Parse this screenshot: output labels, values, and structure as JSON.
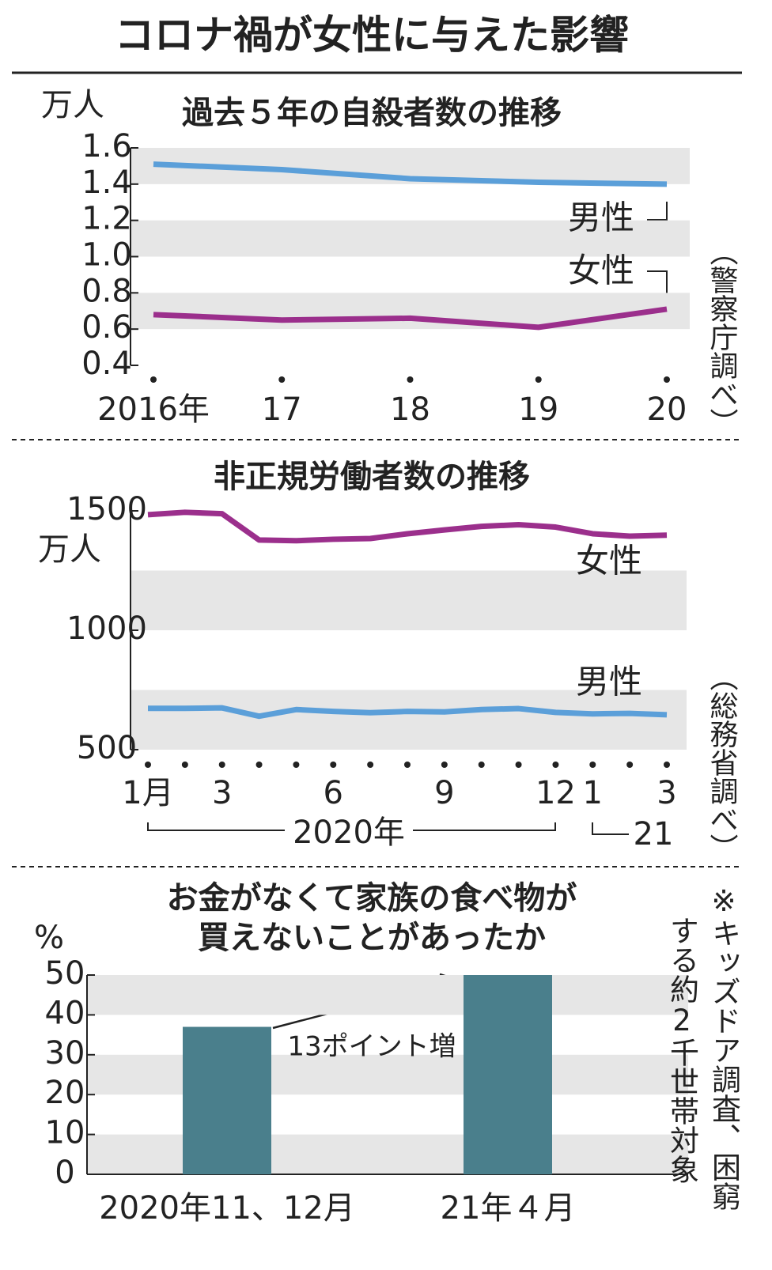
{
  "title": "コロナ禍が女性に与えた影響",
  "chart_data": [
    {
      "type": "line",
      "title": "過去５年の自殺者数の推移",
      "unit": "万人",
      "categories": [
        "2016年",
        "17",
        "18",
        "19",
        "20"
      ],
      "series": [
        {
          "name": "男性",
          "color": "#5b9fd9",
          "values": [
            1.51,
            1.48,
            1.43,
            1.41,
            1.4
          ]
        },
        {
          "name": "女性",
          "color": "#9b2f8c",
          "values": [
            0.68,
            0.65,
            0.66,
            0.61,
            0.71
          ]
        }
      ],
      "ylim": [
        0.4,
        1.6
      ],
      "yticks": [
        1.6,
        1.4,
        1.2,
        {
          "value": 1,
          "label": "1.0"
        },
        0.8,
        0.6,
        0.4
      ],
      "source": "（警察庁調べ）"
    },
    {
      "type": "line",
      "title": "非正規労働者数の推移",
      "unit": "万人",
      "categories": [
        "1月",
        null,
        "3",
        null,
        null,
        "6",
        null,
        null,
        "9",
        null,
        null,
        "12",
        "1",
        null,
        "3"
      ],
      "x_group_labels": [
        "2020年",
        "21"
      ],
      "series": [
        {
          "name": "女性",
          "color": "#9b2f8c",
          "values": [
            1484,
            1494,
            1488,
            1378,
            1375,
            1381,
            1384,
            1404,
            1420,
            1435,
            1442,
            1432,
            1404,
            1394,
            1398
          ]
        },
        {
          "name": "男性",
          "color": "#5b9fd9",
          "values": [
            673,
            673,
            675,
            640,
            668,
            660,
            655,
            660,
            658,
            668,
            672,
            656,
            650,
            652,
            646
          ]
        }
      ],
      "ylim": [
        500,
        1500
      ],
      "yticks": [
        1500,
        1000,
        500
      ],
      "source": "（総務省調べ）"
    },
    {
      "type": "bar",
      "title": "お金がなくて家族の食べ物が\n買えないことがあったか",
      "unit": "%",
      "categories": [
        "2020年11、12月",
        "21年４月"
      ],
      "values": [
        37,
        50
      ],
      "color": "#4a7f8c",
      "ylim": [
        0,
        50
      ],
      "yticks": [
        50,
        40,
        30,
        20,
        10,
        0
      ],
      "annotation": "13ポイント増",
      "note": [
        "※キッズドア調査、困窮",
        "する約2千世帯対象"
      ]
    }
  ]
}
